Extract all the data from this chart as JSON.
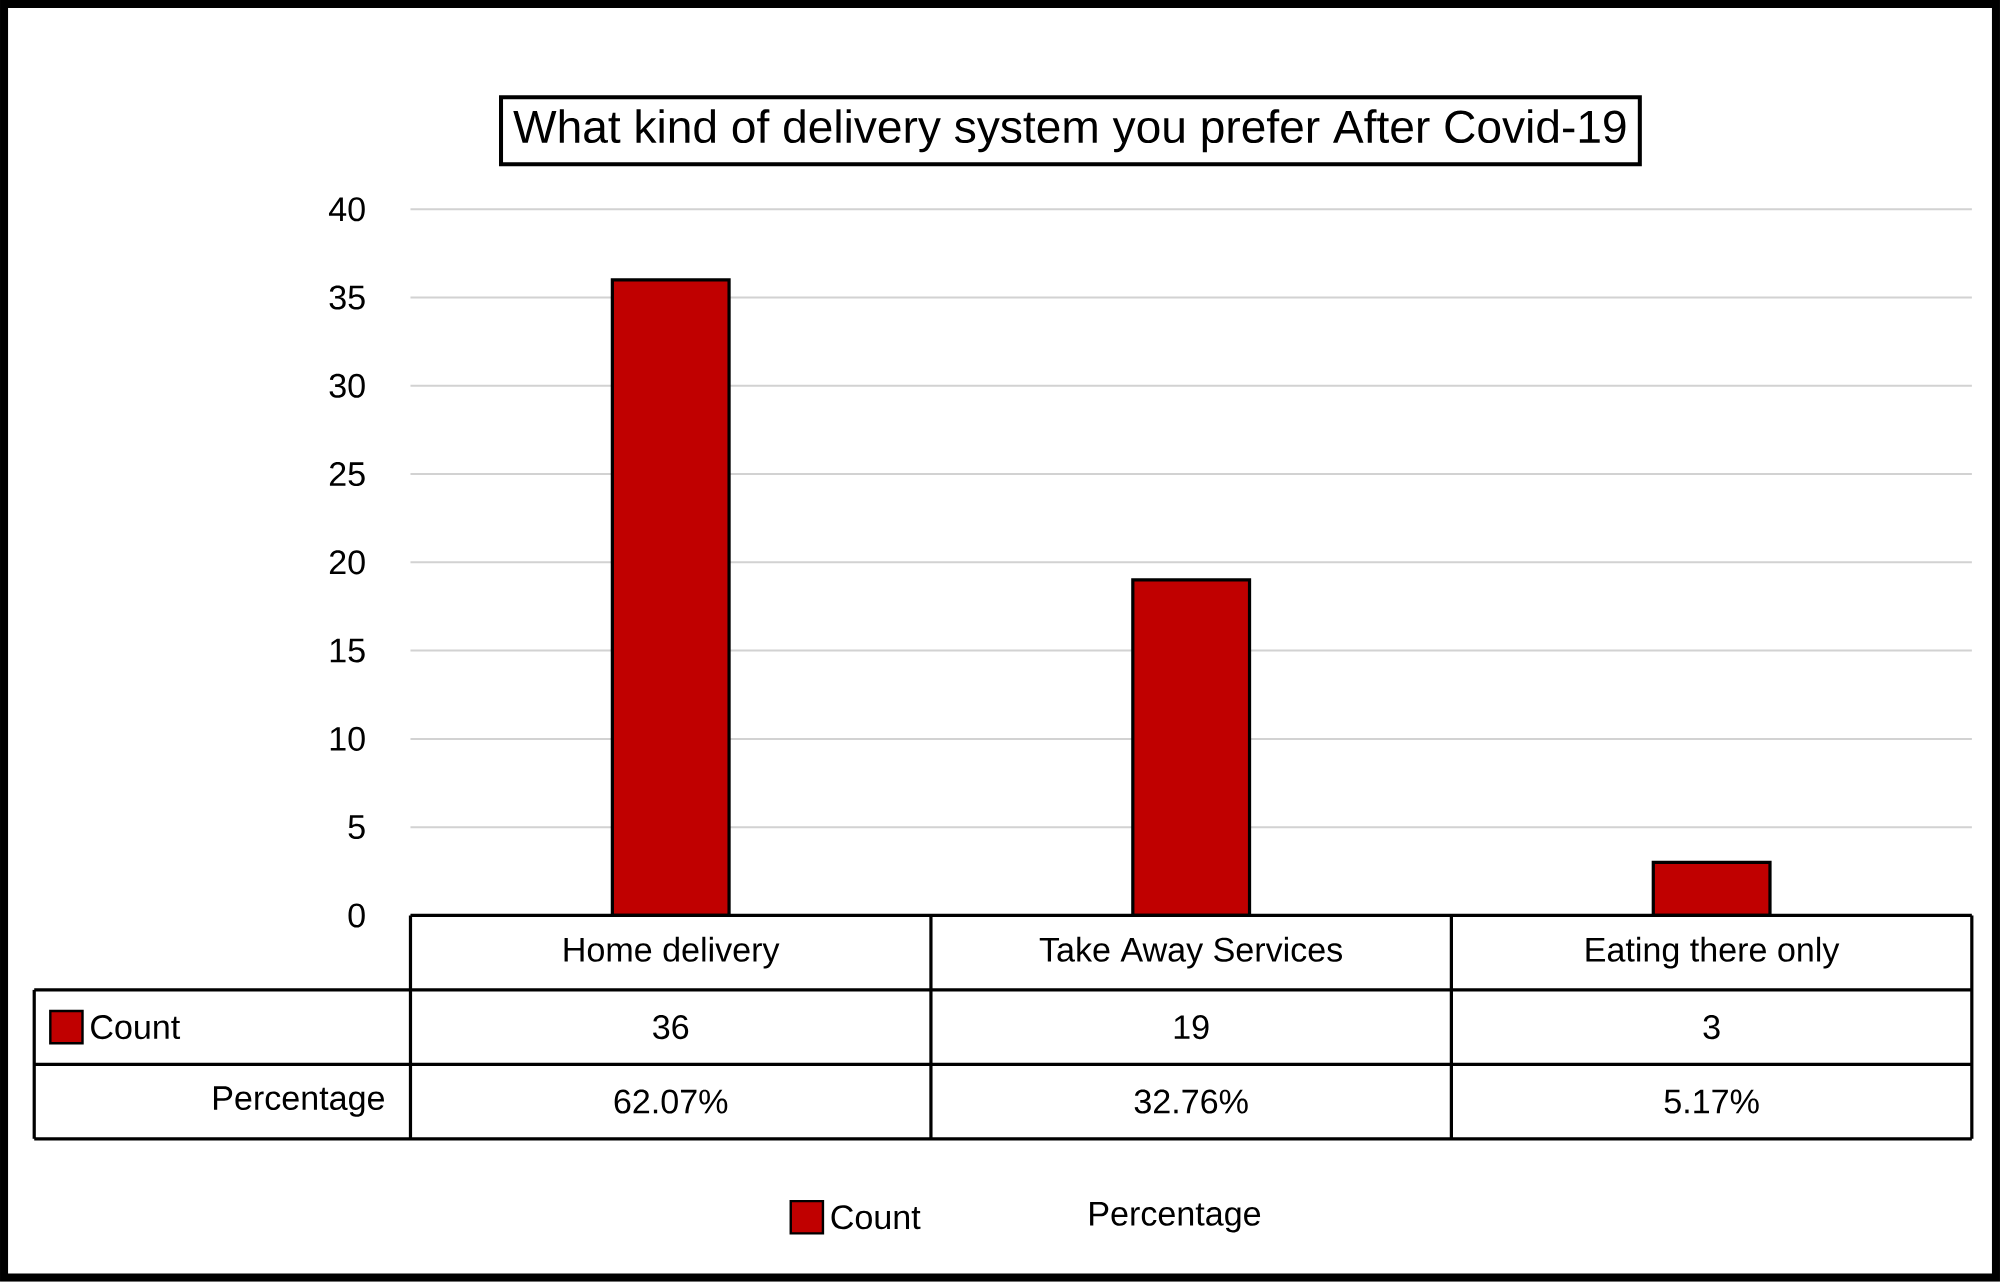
{
  "chart_data": {
    "type": "bar",
    "title": "What kind of delivery system you prefer After Covid-19",
    "categories": [
      "Home delivery",
      "Take Away Services",
      "Eating there only"
    ],
    "series": [
      {
        "name": "Count",
        "color": "#c00000",
        "values": [
          36,
          19,
          3
        ],
        "value_labels": [
          "36",
          "19",
          "3"
        ]
      },
      {
        "name": "Percentage",
        "values": [
          null,
          null,
          null
        ],
        "value_labels": [
          "62.07%",
          "32.76%",
          "5.17%"
        ]
      }
    ],
    "ylim": [
      0,
      40
    ],
    "yticks": [
      0,
      5,
      10,
      15,
      20,
      25,
      30,
      35,
      40
    ],
    "grid": "y",
    "legend": "bottom"
  }
}
